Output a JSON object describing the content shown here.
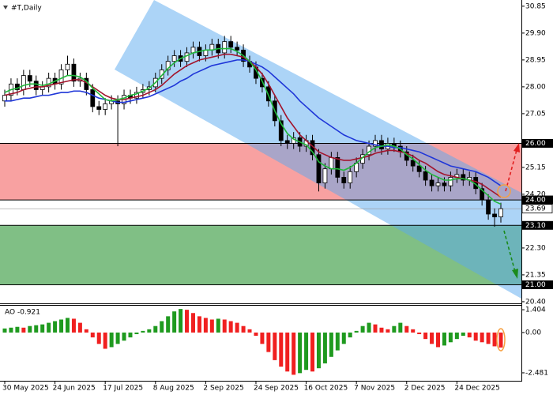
{
  "chart_data": [
    {
      "type": "candlestick",
      "title": "#T,Daily",
      "categories": [
        "30 May 2025",
        null,
        null,
        null,
        null,
        null,
        null,
        null,
        "24 Jun 2025",
        null,
        null,
        null,
        null,
        null,
        null,
        null,
        "17 Jul 2025",
        null,
        null,
        null,
        null,
        null,
        null,
        null,
        "8 Aug 2025",
        null,
        null,
        null,
        null,
        null,
        null,
        null,
        "2 Sep 2025",
        null,
        null,
        null,
        null,
        null,
        null,
        null,
        "24 Sep 2025",
        null,
        null,
        null,
        null,
        null,
        null,
        null,
        "16 Oct 2025",
        null,
        null,
        null,
        null,
        null,
        null,
        null,
        "7 Nov 2025",
        null,
        null,
        null,
        null,
        null,
        null,
        null,
        "2 Dec 2025",
        null,
        null,
        null,
        null,
        null,
        null,
        null,
        "24 Dec 2025",
        null,
        null,
        null,
        null,
        null,
        null,
        null
      ],
      "open": [
        27.5,
        27.7,
        28.1,
        27.9,
        28.4,
        28.2,
        27.9,
        28.0,
        28.3,
        28.1,
        28.6,
        28.8,
        28.2,
        28.3,
        27.9,
        27.3,
        27.2,
        27.4,
        27.5,
        27.4,
        27.7,
        27.6,
        27.8,
        27.9,
        28.0,
        28.3,
        28.6,
        28.9,
        29.1,
        28.9,
        29.2,
        29.4,
        29.1,
        29.3,
        29.5,
        29.2,
        29.6,
        29.4,
        29.3,
        28.9,
        28.7,
        28.3,
        28.0,
        27.5,
        26.8,
        26.1,
        26.0,
        26.2,
        25.9,
        26.1,
        25.6,
        24.6,
        25.1,
        25.5,
        24.8,
        24.6,
        25.0,
        25.3,
        25.6,
        25.9,
        26.1,
        25.8,
        26.0,
        25.9,
        25.7,
        25.4,
        25.2,
        25.0,
        24.7,
        24.5,
        24.6,
        24.5,
        24.8,
        24.9,
        24.7,
        24.8,
        24.4,
        24.0,
        23.5,
        23.4
      ],
      "high": [
        27.9,
        28.3,
        28.3,
        28.6,
        28.6,
        28.4,
        28.2,
        28.5,
        28.5,
        28.8,
        29.1,
        29.0,
        28.5,
        28.5,
        28.1,
        27.5,
        27.6,
        27.7,
        27.7,
        27.9,
        27.9,
        28.0,
        28.1,
        28.2,
        28.5,
        28.8,
        29.1,
        29.3,
        29.3,
        29.4,
        29.6,
        29.6,
        29.5,
        29.7,
        29.7,
        29.8,
        29.8,
        29.6,
        29.5,
        29.1,
        28.9,
        28.5,
        28.2,
        27.7,
        27.0,
        26.3,
        26.4,
        26.4,
        26.3,
        26.3,
        25.8,
        25.3,
        25.7,
        25.7,
        25.0,
        25.2,
        25.5,
        25.8,
        26.1,
        26.3,
        26.3,
        26.2,
        26.2,
        26.1,
        25.9,
        25.6,
        25.4,
        25.2,
        24.9,
        24.8,
        24.8,
        25.0,
        25.1,
        25.1,
        25.0,
        25.0,
        24.6,
        24.2,
        23.7,
        23.9
      ],
      "low": [
        27.3,
        27.5,
        27.7,
        27.7,
        28.0,
        27.7,
        27.7,
        27.8,
        27.9,
        27.9,
        28.4,
        28.0,
        28.0,
        27.7,
        27.1,
        27.0,
        27.0,
        27.2,
        25.9,
        27.2,
        27.4,
        27.4,
        27.6,
        27.7,
        27.8,
        28.1,
        28.4,
        28.7,
        28.7,
        28.7,
        29.0,
        28.9,
        28.9,
        29.1,
        29.0,
        29.0,
        29.2,
        29.1,
        28.7,
        28.5,
        28.1,
        27.8,
        27.3,
        26.6,
        25.9,
        25.8,
        25.8,
        25.7,
        25.7,
        25.4,
        24.3,
        24.4,
        24.9,
        24.6,
        24.4,
        24.4,
        24.8,
        25.1,
        25.4,
        25.7,
        25.6,
        25.6,
        25.7,
        25.5,
        25.2,
        25.0,
        24.8,
        24.5,
        24.3,
        24.3,
        24.3,
        24.3,
        24.6,
        24.5,
        24.5,
        24.2,
        23.8,
        23.3,
        23.05,
        23.2
      ],
      "close": [
        27.7,
        28.1,
        27.9,
        28.4,
        28.2,
        27.9,
        28.0,
        28.3,
        28.1,
        28.6,
        28.8,
        28.2,
        28.3,
        27.9,
        27.3,
        27.2,
        27.4,
        27.5,
        27.4,
        27.7,
        27.6,
        27.8,
        27.9,
        28.0,
        28.3,
        28.6,
        28.9,
        29.1,
        28.9,
        29.2,
        29.4,
        29.1,
        29.3,
        29.5,
        29.2,
        29.6,
        29.4,
        29.3,
        28.9,
        28.7,
        28.3,
        28.0,
        27.5,
        26.8,
        26.1,
        26.0,
        26.2,
        25.9,
        26.1,
        25.6,
        24.6,
        25.1,
        25.5,
        24.8,
        24.6,
        25.0,
        25.3,
        25.6,
        25.9,
        26.1,
        25.8,
        26.0,
        25.9,
        25.7,
        25.4,
        25.2,
        25.0,
        24.7,
        24.5,
        24.6,
        24.5,
        24.8,
        24.9,
        24.7,
        24.8,
        24.4,
        24.0,
        23.5,
        23.4,
        23.69
      ],
      "series": [
        {
          "color": "#1f36d8",
          "values": [
            27.5,
            27.5,
            27.55,
            27.6,
            27.6,
            27.65,
            27.7,
            27.7,
            27.75,
            27.8,
            27.8,
            27.85,
            27.85,
            27.8,
            27.7,
            27.6,
            27.55,
            27.5,
            27.45,
            27.45,
            27.5,
            27.55,
            27.6,
            27.65,
            27.75,
            27.85,
            27.95,
            28.05,
            28.2,
            28.3,
            28.45,
            28.55,
            28.65,
            28.75,
            28.8,
            28.85,
            28.9,
            28.95,
            28.95,
            28.9,
            28.8,
            28.7,
            28.55,
            28.35,
            28.15,
            27.95,
            27.75,
            27.5,
            27.3,
            27.1,
            26.9,
            26.75,
            26.6,
            26.45,
            26.3,
            26.2,
            26.1,
            26.05,
            26.0,
            25.95,
            25.9,
            25.9,
            25.85,
            25.85,
            25.8,
            25.75,
            25.7,
            25.6,
            25.5,
            25.4,
            25.3,
            25.2,
            25.15,
            25.1,
            25.05,
            25.0,
            24.9,
            24.8,
            24.65,
            24.5
          ]
        },
        {
          "color": "#a3142c",
          "values": [
            27.7,
            27.75,
            27.8,
            27.9,
            27.95,
            28.0,
            28.0,
            28.05,
            28.1,
            28.15,
            28.2,
            28.25,
            28.25,
            28.15,
            28.0,
            27.85,
            27.7,
            27.6,
            27.55,
            27.55,
            27.6,
            27.65,
            27.7,
            27.8,
            27.9,
            28.05,
            28.25,
            28.45,
            28.6,
            28.75,
            28.85,
            28.95,
            29.0,
            29.05,
            29.1,
            29.15,
            29.15,
            29.1,
            29.05,
            28.9,
            28.7,
            28.45,
            28.1,
            27.7,
            27.3,
            26.9,
            26.6,
            26.3,
            26.1,
            25.9,
            25.7,
            25.6,
            25.5,
            25.45,
            25.4,
            25.4,
            25.45,
            25.5,
            25.55,
            25.65,
            25.7,
            25.75,
            25.75,
            25.7,
            25.65,
            25.55,
            25.4,
            25.3,
            25.15,
            25.0,
            24.9,
            24.85,
            24.8,
            24.75,
            24.7,
            24.65,
            24.55,
            24.4,
            24.25,
            24.1
          ]
        },
        {
          "color": "#20b83a",
          "values": [
            27.8,
            27.9,
            27.95,
            28.05,
            28.1,
            28.1,
            28.05,
            28.1,
            28.2,
            28.3,
            28.4,
            28.4,
            28.35,
            28.2,
            27.95,
            27.75,
            27.55,
            27.5,
            27.55,
            27.6,
            27.7,
            27.75,
            27.85,
            27.95,
            28.15,
            28.4,
            28.65,
            28.85,
            29.0,
            29.1,
            29.2,
            29.25,
            29.3,
            29.3,
            29.35,
            29.35,
            29.35,
            29.25,
            29.1,
            28.9,
            28.6,
            28.2,
            27.7,
            27.15,
            26.7,
            26.35,
            26.15,
            26.05,
            25.95,
            25.7,
            25.35,
            25.2,
            25.1,
            25.1,
            25.05,
            25.15,
            25.3,
            25.5,
            25.7,
            25.85,
            25.9,
            25.95,
            25.9,
            25.8,
            25.6,
            25.45,
            25.25,
            25.05,
            24.9,
            24.8,
            24.7,
            24.7,
            24.75,
            24.75,
            24.7,
            24.55,
            24.35,
            24.15,
            23.95,
            23.85
          ]
        }
      ],
      "ylim": [
        20.37,
        31.07
      ],
      "yticks": [
        30.85,
        {
          "value": 29.9,
          "label": "29.90"
        },
        28.95,
        {
          "value": 28,
          "label": "28.00"
        },
        27.05,
        25.15,
        {
          "value": 24.2,
          "label": "24.20"
        },
        {
          "value": 22.3,
          "label": "22.30"
        },
        21.35,
        {
          "value": 20.4,
          "label": "20.40"
        }
      ],
      "levels": [
        {
          "value": 26,
          "label": "26.00"
        },
        {
          "value": 24,
          "label": "24.00"
        },
        {
          "value": 23.1,
          "label": "23.10"
        },
        {
          "value": 21,
          "label": "21.00"
        }
      ],
      "zone_colors": [
        "#f8a1a1",
        "#80bf85"
      ],
      "last_price": 23.69
    },
    {
      "type": "bar",
      "title": "AO -0.921",
      "values": [
        0.25,
        0.3,
        0.35,
        0.3,
        0.4,
        0.45,
        0.5,
        0.6,
        0.7,
        0.8,
        0.9,
        0.85,
        0.6,
        0.2,
        -0.3,
        -0.7,
        -1.0,
        -0.9,
        -0.7,
        -0.5,
        -0.3,
        -0.1,
        0.1,
        0.2,
        0.4,
        0.7,
        1.0,
        1.3,
        1.45,
        1.4,
        1.2,
        1.0,
        0.9,
        0.8,
        0.85,
        0.8,
        0.7,
        0.6,
        0.4,
        0.2,
        -0.2,
        -0.7,
        -1.2,
        -1.7,
        -2.1,
        -2.4,
        -2.6,
        -2.5,
        -2.3,
        -2.4,
        -2.2,
        -1.9,
        -1.5,
        -1.1,
        -0.7,
        -0.3,
        0.1,
        0.4,
        0.6,
        0.5,
        0.3,
        0.2,
        0.4,
        0.6,
        0.4,
        0.2,
        -0.1,
        -0.4,
        -0.7,
        -0.9,
        -0.8,
        -0.6,
        -0.4,
        -0.2,
        -0.3,
        -0.5,
        -0.6,
        -0.7,
        -0.85,
        -0.921
      ],
      "up_color": "#1f9a1f",
      "down_color": "#f02020",
      "ylim": [
        -2.97,
        1.65
      ],
      "yticks": [
        1.404,
        {
          "value": 0,
          "label": "0.00"
        },
        -2.481
      ]
    }
  ]
}
